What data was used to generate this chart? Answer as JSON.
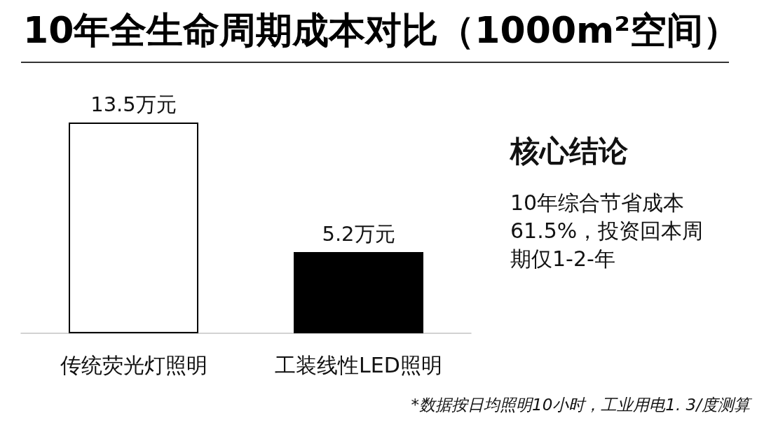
{
  "chart_data": {
    "type": "bar",
    "title": "10年全生命周期成本对比（1000m²空间）",
    "categories": [
      "传统荧光灯照明",
      "工装线性LED照明"
    ],
    "values": [
      13.5,
      5.2
    ],
    "colors": [
      "#ffffff",
      "#000000"
    ],
    "value_labels": [
      "13.5万元",
      "5.2万元"
    ],
    "annotations": [
      "核心结论",
      "10年综合节省成本61.5%，投资回本周期仅1-2-年",
      "*数据按日均照明10小时，工业用电1. 3/度测算"
    ]
  }
}
